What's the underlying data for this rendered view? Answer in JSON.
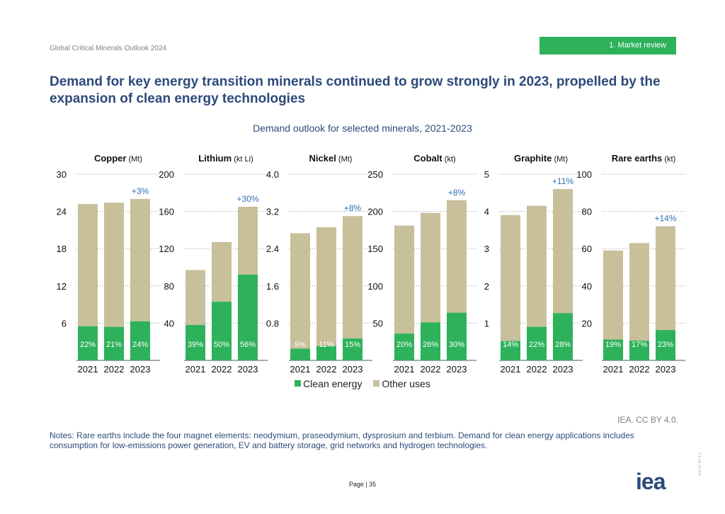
{
  "header": {
    "report_name": "Global Critical Minerals Outlook 2024",
    "section_tag": "1.   Market review",
    "headline": "Demand for key energy transition minerals continued to grow strongly in 2023, propelled by the expansion of clean energy technologies"
  },
  "chart_title": "Demand outlook for selected minerals, 2021-2023",
  "legend": {
    "clean": "Clean energy",
    "other": "Other uses"
  },
  "colors": {
    "clean": "#2db25b",
    "other": "#c8bf9b",
    "growth_label": "#2f6fb5",
    "title": "#2c4a7a"
  },
  "chart_data": [
    {
      "type": "bar",
      "stacked": true,
      "title": "Copper",
      "unit": "(Mt)",
      "categories": [
        "2021",
        "2022",
        "2023"
      ],
      "ylim": [
        0,
        30
      ],
      "yticks": [
        6,
        12,
        18,
        24,
        30
      ],
      "series": [
        {
          "name": "Clean energy",
          "values": [
            5.5,
            5.4,
            6.3
          ]
        },
        {
          "name": "Other uses",
          "values": [
            19.7,
            20.0,
            19.7
          ]
        }
      ],
      "share_labels": [
        "22%",
        "21%",
        "24%"
      ],
      "growth_label": "+3%"
    },
    {
      "type": "bar",
      "stacked": true,
      "title": "Lithium",
      "unit": "(kt Li)",
      "categories": [
        "2021",
        "2022",
        "2023"
      ],
      "ylim": [
        0,
        200
      ],
      "yticks": [
        40,
        80,
        120,
        160,
        200
      ],
      "series": [
        {
          "name": "Clean energy",
          "values": [
            38,
            63,
            92
          ]
        },
        {
          "name": "Other uses",
          "values": [
            59,
            64,
            73
          ]
        }
      ],
      "share_labels": [
        "39%",
        "50%",
        "56%"
      ],
      "growth_label": "+30%"
    },
    {
      "type": "bar",
      "stacked": true,
      "title": "Nickel",
      "unit": "(Mt)",
      "categories": [
        "2021",
        "2022",
        "2023"
      ],
      "ylim": [
        0,
        4.0
      ],
      "yticks": [
        "0.8",
        "1.6",
        "2.4",
        "3.2",
        "4.0"
      ],
      "series": [
        {
          "name": "Clean energy",
          "values": [
            0.25,
            0.31,
            0.47
          ]
        },
        {
          "name": "Other uses",
          "values": [
            2.48,
            2.55,
            2.63
          ]
        }
      ],
      "share_labels": [
        "9%",
        "11%",
        "15%"
      ],
      "growth_label": "+8%"
    },
    {
      "type": "bar",
      "stacked": true,
      "title": "Cobalt",
      "unit": "(kt)",
      "categories": [
        "2021",
        "2022",
        "2023"
      ],
      "ylim": [
        0,
        250
      ],
      "yticks": [
        50,
        100,
        150,
        200,
        250
      ],
      "series": [
        {
          "name": "Clean energy",
          "values": [
            36,
            51,
            64
          ]
        },
        {
          "name": "Other uses",
          "values": [
            145,
            147,
            151
          ]
        }
      ],
      "share_labels": [
        "20%",
        "26%",
        "30%"
      ],
      "growth_label": "+8%"
    },
    {
      "type": "bar",
      "stacked": true,
      "title": "Graphite",
      "unit": "(Mt)",
      "categories": [
        "2021",
        "2022",
        "2023"
      ],
      "ylim": [
        0,
        5
      ],
      "yticks": [
        1,
        2,
        3,
        4,
        5
      ],
      "series": [
        {
          "name": "Clean energy",
          "values": [
            0.52,
            0.9,
            1.27
          ]
        },
        {
          "name": "Other uses",
          "values": [
            3.38,
            3.25,
            3.33
          ]
        }
      ],
      "share_labels": [
        "14%",
        "22%",
        "28%"
      ],
      "growth_label": "+11%"
    },
    {
      "type": "bar",
      "stacked": true,
      "title": "Rare earths",
      "unit": "(kt)",
      "categories": [
        "2021",
        "2022",
        "2023"
      ],
      "ylim": [
        0,
        100
      ],
      "yticks": [
        20,
        40,
        60,
        80,
        100
      ],
      "series": [
        {
          "name": "Clean energy",
          "values": [
            11.2,
            10.6,
            16.3
          ]
        },
        {
          "name": "Other uses",
          "values": [
            47.8,
            52.4,
            55.7
          ]
        }
      ],
      "share_labels": [
        "19%",
        "17%",
        "23%"
      ],
      "growth_label": "+14%"
    }
  ],
  "footer": {
    "source": "IEA. CC BY 4.0.",
    "notes": "Notes: Rare earths include the four magnet elements: neodymium, praseodymium, dysprosium and terbium. Demand for clean energy applications includes consumption for low-emissions power generation, EV and battery storage, grid networks and hydrogen technologies.",
    "page_label": "Page | 35",
    "logo_text": "iea",
    "side_license": "IEA CC BY 4.0"
  }
}
